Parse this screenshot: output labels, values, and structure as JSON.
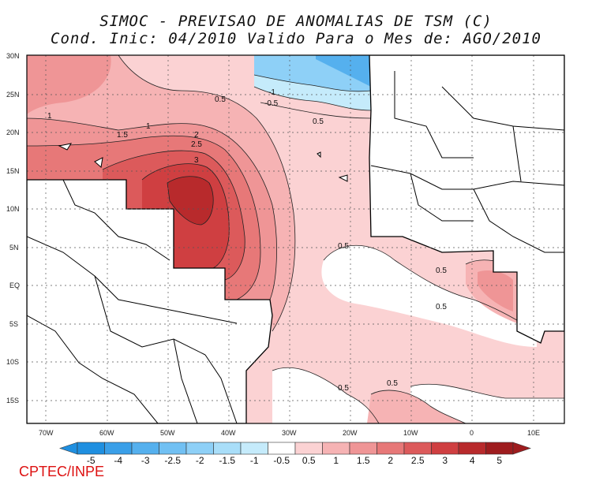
{
  "title": {
    "line1": "SIMOC - PREVISAO DE ANOMALIAS DE TSM (C)",
    "line2": "Cond. Inic: 04/2010   Valido Para o Mes de: AGO/2010"
  },
  "credit": "CPTEC/INPE",
  "map": {
    "lat_labels": [
      "30N",
      "25N",
      "20N",
      "15N",
      "10N",
      "5N",
      "EQ",
      "5S",
      "10S",
      "15S"
    ],
    "lon_labels": [
      "70W",
      "60W",
      "50W",
      "40W",
      "30W",
      "20W",
      "10W",
      "0",
      "10E"
    ],
    "contour_labels": [
      "1",
      "1.5",
      "1",
      "0.5",
      "2",
      "2.5",
      "3",
      "-1",
      "-0.5",
      "0.5",
      "0.5",
      "0.5",
      "0.5",
      "0.5",
      "0.5"
    ]
  },
  "colorbar": {
    "labels": [
      "-5",
      "-4",
      "-3",
      "-2.5",
      "-2",
      "-1.5",
      "-1",
      "-0.5",
      "0.5",
      "1",
      "1.5",
      "2",
      "2.5",
      "3",
      "4",
      "5"
    ],
    "colors": [
      "#1f8fe0",
      "#3a9fe8",
      "#55b0ee",
      "#71c0f3",
      "#8ed0f7",
      "#a9def9",
      "#c5ebfb",
      "#ffffff",
      "#fbd2d3",
      "#f6b3b4",
      "#ef9596",
      "#e77878",
      "#dc5a5b",
      "#cf3f41",
      "#b82a2c",
      "#9e1c1e"
    ]
  }
}
